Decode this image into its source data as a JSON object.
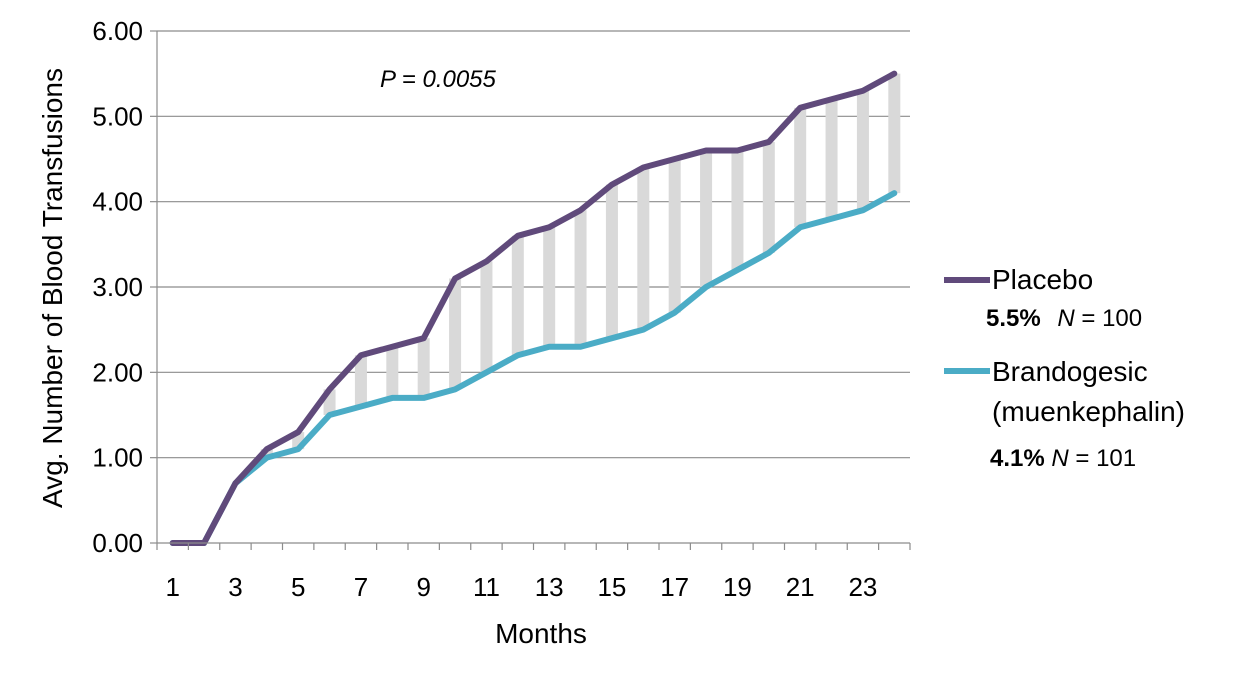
{
  "chart_data": {
    "type": "line",
    "xlabel": "Months",
    "ylabel": "Avg. Number of Blood Transfusions",
    "ylim": [
      0,
      6
    ],
    "yticks": [
      "0.00",
      "1.00",
      "2.00",
      "3.00",
      "4.00",
      "5.00",
      "6.00"
    ],
    "x": [
      1,
      2,
      3,
      4,
      5,
      6,
      7,
      8,
      9,
      10,
      11,
      12,
      13,
      14,
      15,
      16,
      17,
      18,
      19,
      20,
      21,
      22,
      23,
      24
    ],
    "xtick_labels": [
      "1",
      "3",
      "5",
      "7",
      "9",
      "11",
      "13",
      "15",
      "17",
      "19",
      "21",
      "23"
    ],
    "grid": "horizontal",
    "annotation": "P = 0.0055",
    "series": [
      {
        "name": "Placebo",
        "color": "#604a7b",
        "values": [
          0,
          0,
          0.7,
          1.1,
          1.3,
          1.8,
          2.2,
          2.3,
          2.4,
          3.1,
          3.3,
          3.6,
          3.7,
          3.9,
          4.2,
          4.4,
          4.5,
          4.6,
          4.6,
          4.7,
          5.1,
          5.2,
          5.3,
          5.5
        ],
        "stat_pct": "5.5%",
        "n_label": "N",
        "n_value": " = 100"
      },
      {
        "name": "Brandogesic",
        "name_line2": "(muenkephalin)",
        "color": "#4bacc6",
        "values": [
          0,
          0,
          0.7,
          1.0,
          1.1,
          1.5,
          1.6,
          1.7,
          1.7,
          1.8,
          2.0,
          2.2,
          2.3,
          2.3,
          2.4,
          2.5,
          2.7,
          3.0,
          3.2,
          3.4,
          3.7,
          3.8,
          3.9,
          4.1
        ],
        "stat_pct": "4.1%",
        "n_label": "N",
        "n_value": " = 101"
      }
    ],
    "difference_bar_color": "#d9d9d9",
    "legend_position": "right"
  }
}
